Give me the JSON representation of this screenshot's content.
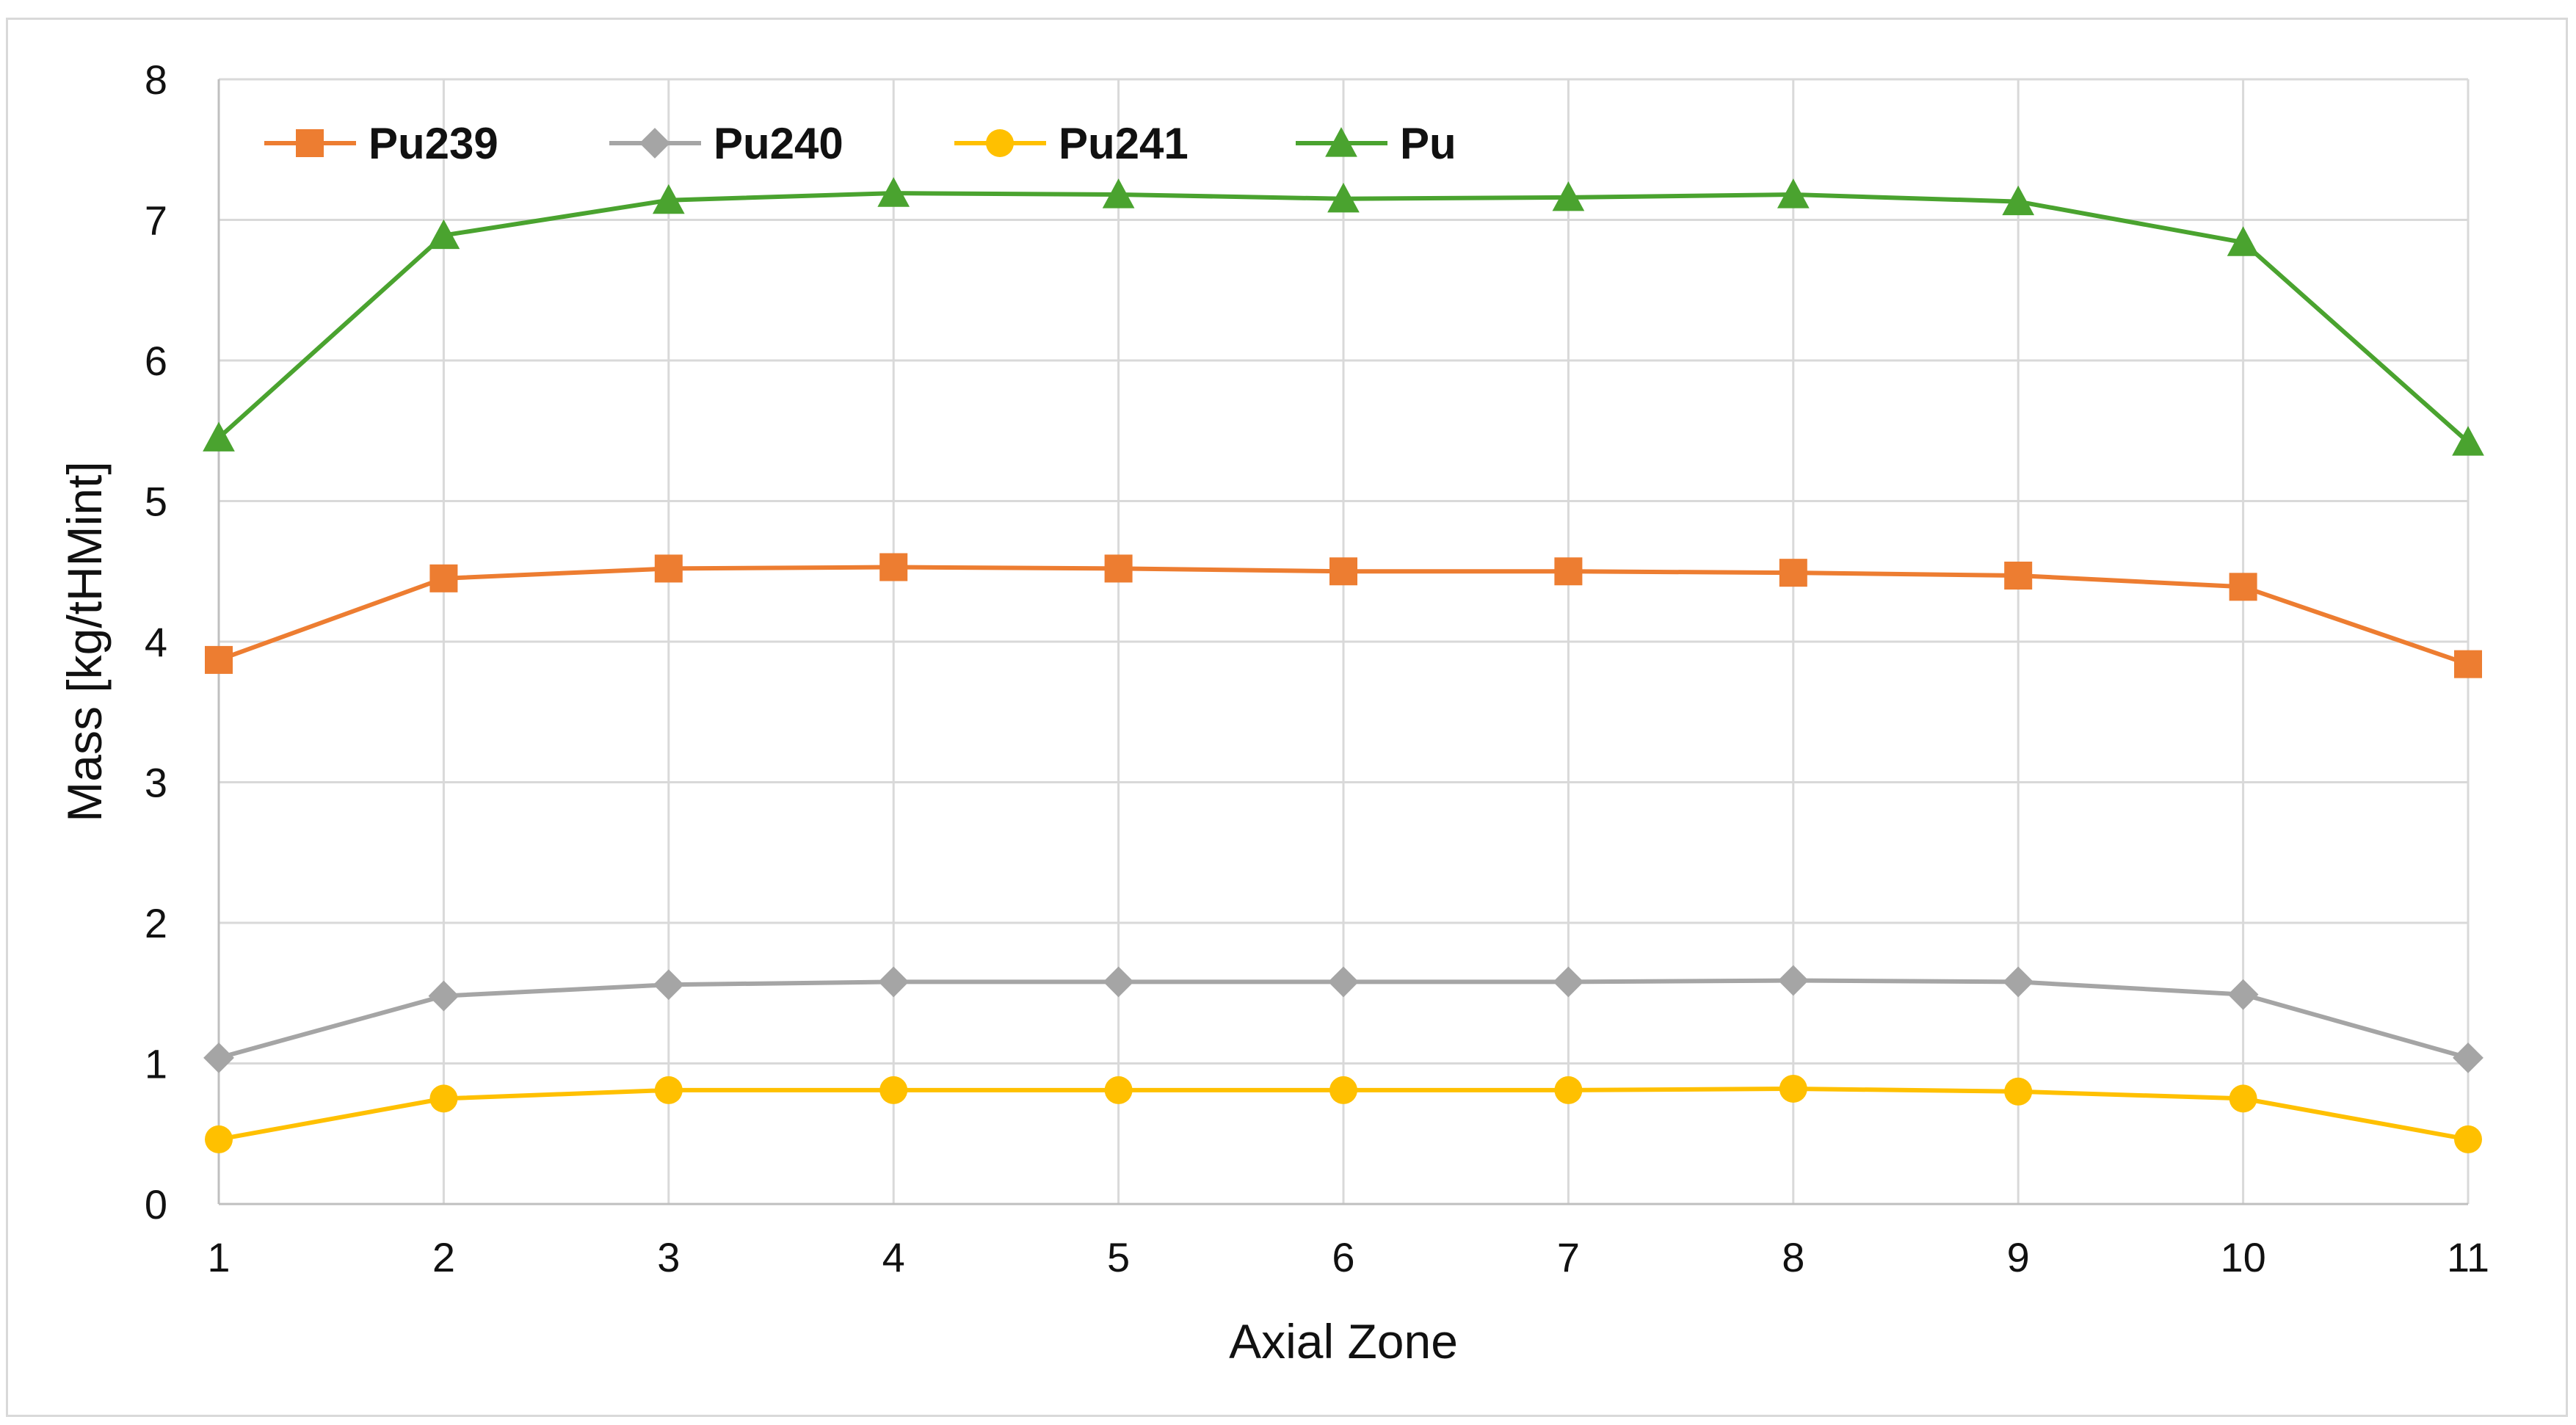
{
  "chart_data": {
    "type": "line",
    "title": "",
    "xlabel": "Axial Zone",
    "ylabel": "Mass [kg/tHMint]",
    "x": [
      1,
      2,
      3,
      4,
      5,
      6,
      7,
      8,
      9,
      10,
      11
    ],
    "x_ticks": [
      "1",
      "2",
      "3",
      "4",
      "5",
      "6",
      "7",
      "8",
      "9",
      "10",
      "11"
    ],
    "ylim": [
      0,
      8
    ],
    "y_ticks": [
      "0",
      "1",
      "2",
      "3",
      "4",
      "5",
      "6",
      "7",
      "8"
    ],
    "grid": true,
    "legend_position": "top-left",
    "series": [
      {
        "name": "Pu239",
        "color": "#ED7D31",
        "marker": "square",
        "values": [
          3.87,
          4.45,
          4.52,
          4.53,
          4.52,
          4.5,
          4.5,
          4.49,
          4.47,
          4.39,
          3.84
        ]
      },
      {
        "name": "Pu240",
        "color": "#A5A5A5",
        "marker": "diamond",
        "values": [
          1.04,
          1.48,
          1.56,
          1.58,
          1.58,
          1.58,
          1.58,
          1.59,
          1.58,
          1.49,
          1.04
        ]
      },
      {
        "name": "Pu241",
        "color": "#FFC000",
        "marker": "circle",
        "values": [
          0.46,
          0.75,
          0.81,
          0.81,
          0.81,
          0.81,
          0.81,
          0.82,
          0.8,
          0.75,
          0.46
        ]
      },
      {
        "name": "Pu",
        "color": "#4AA32F",
        "marker": "triangle",
        "values": [
          5.45,
          6.89,
          7.14,
          7.19,
          7.18,
          7.15,
          7.16,
          7.18,
          7.13,
          6.84,
          5.42
        ]
      }
    ]
  }
}
